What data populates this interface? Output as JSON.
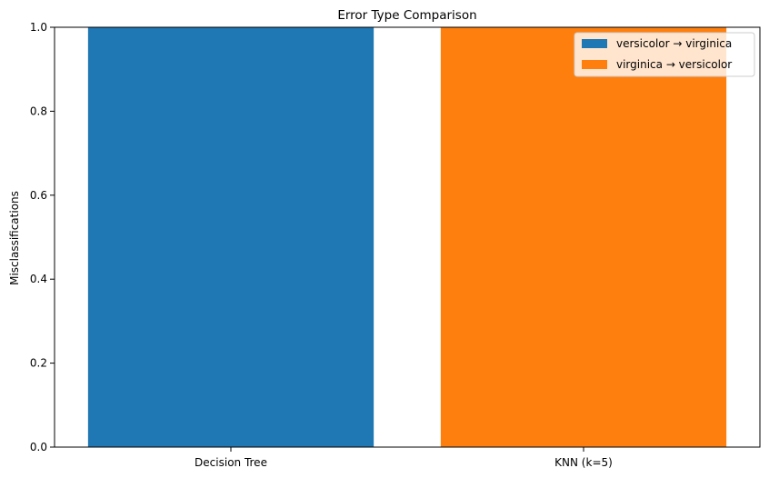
{
  "chart_data": {
    "type": "bar",
    "title": "Error Type Comparison",
    "xlabel": "",
    "ylabel": "Misclassifications",
    "categories": [
      "Decision Tree",
      "KNN (k=5)"
    ],
    "ylim": [
      0,
      1.0
    ],
    "yticks": [
      "0.0",
      "0.2",
      "0.4",
      "0.6",
      "0.8",
      "1.0"
    ],
    "grid": false,
    "legend_position": "top-right",
    "series": [
      {
        "name": "versicolor → virginica",
        "color": "#1f77b4",
        "values": [
          1,
          0
        ]
      },
      {
        "name": "virginica → versicolor",
        "color": "#ff7f0e",
        "values": [
          0,
          1
        ]
      }
    ]
  }
}
